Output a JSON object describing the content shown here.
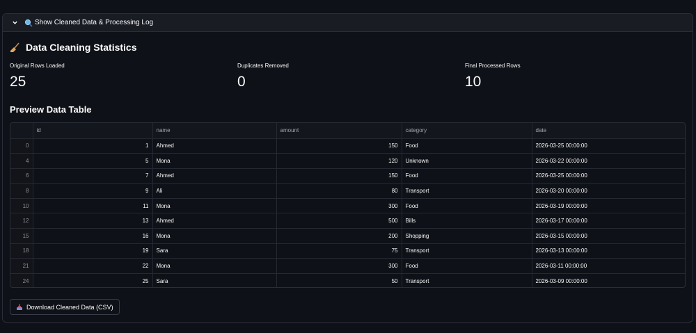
{
  "expander": {
    "label": "Show Cleaned Data & Processing Log",
    "expanded": true
  },
  "stats": {
    "title": "Data Cleaning Statistics",
    "metrics": [
      {
        "label": "Original Rows Loaded",
        "value": "25"
      },
      {
        "label": "Duplicates Removed",
        "value": "0"
      },
      {
        "label": "Final Processed Rows",
        "value": "10"
      }
    ]
  },
  "preview": {
    "title": "Preview Data Table",
    "columns": [
      "id",
      "name",
      "amount",
      "category",
      "date"
    ],
    "rows": [
      {
        "index": "0",
        "id": "1",
        "name": "Ahmed",
        "amount": "150",
        "category": "Food",
        "date": "2026-03-25 00:00:00"
      },
      {
        "index": "4",
        "id": "5",
        "name": "Mona",
        "amount": "120",
        "category": "Unknown",
        "date": "2026-03-22 00:00:00"
      },
      {
        "index": "6",
        "id": "7",
        "name": "Ahmed",
        "amount": "150",
        "category": "Food",
        "date": "2026-03-25 00:00:00"
      },
      {
        "index": "8",
        "id": "9",
        "name": "Ali",
        "amount": "80",
        "category": "Transport",
        "date": "2026-03-20 00:00:00"
      },
      {
        "index": "10",
        "id": "11",
        "name": "Mona",
        "amount": "300",
        "category": "Food",
        "date": "2026-03-19 00:00:00"
      },
      {
        "index": "12",
        "id": "13",
        "name": "Ahmed",
        "amount": "500",
        "category": "Bills",
        "date": "2026-03-17 00:00:00"
      },
      {
        "index": "15",
        "id": "16",
        "name": "Mona",
        "amount": "200",
        "category": "Shopping",
        "date": "2026-03-15 00:00:00"
      },
      {
        "index": "18",
        "id": "19",
        "name": "Sara",
        "amount": "75",
        "category": "Transport",
        "date": "2026-03-13 00:00:00"
      },
      {
        "index": "21",
        "id": "22",
        "name": "Mona",
        "amount": "300",
        "category": "Food",
        "date": "2026-03-11 00:00:00"
      },
      {
        "index": "24",
        "id": "25",
        "name": "Sara",
        "amount": "50",
        "category": "Transport",
        "date": "2026-03-09 00:00:00"
      }
    ]
  },
  "download": {
    "label": "Download Cleaned Data (CSV)"
  },
  "icons": {
    "chevron": "chevron-down-icon",
    "search": "magnifier-icon",
    "broom": "broom-icon",
    "download": "inbox-tray-icon"
  },
  "colors": {
    "background": "#0e1117",
    "border": "#2b2e38",
    "text": "#fafafa",
    "muted": "#a3a8b4"
  }
}
